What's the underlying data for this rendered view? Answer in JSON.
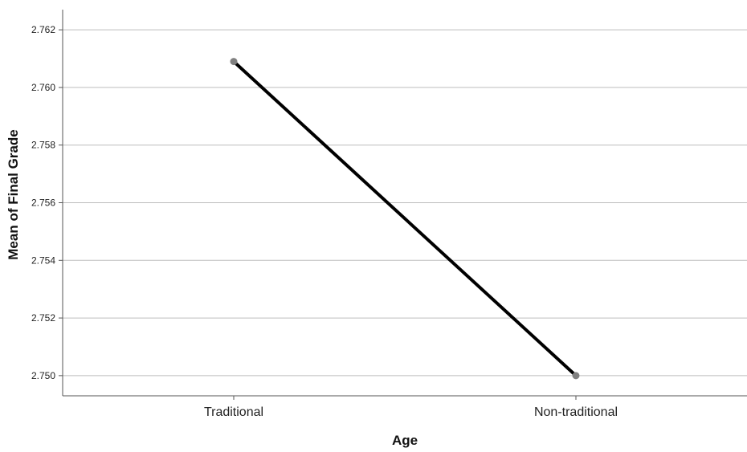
{
  "chart_data": {
    "type": "line",
    "title": "",
    "xlabel": "Age",
    "ylabel": "Mean of Final Grade",
    "categories": [
      "Traditional",
      "Non-traditional"
    ],
    "series": [
      {
        "values": [
          2.7609,
          2.75
        ]
      }
    ],
    "ylim": [
      2.7493,
      2.7627
    ],
    "yticks": [
      2.75,
      2.752,
      2.754,
      2.756,
      2.758,
      2.76,
      2.762
    ],
    "ytick_labels": [
      "2.750",
      "2.752",
      "2.754",
      "2.756",
      "2.758",
      "2.760",
      "2.762"
    ],
    "grid": true,
    "legend": "none",
    "colors": {
      "line": "#000000",
      "marker": "#808080",
      "grid": "#bdbdbd",
      "axis": "#555555"
    }
  }
}
